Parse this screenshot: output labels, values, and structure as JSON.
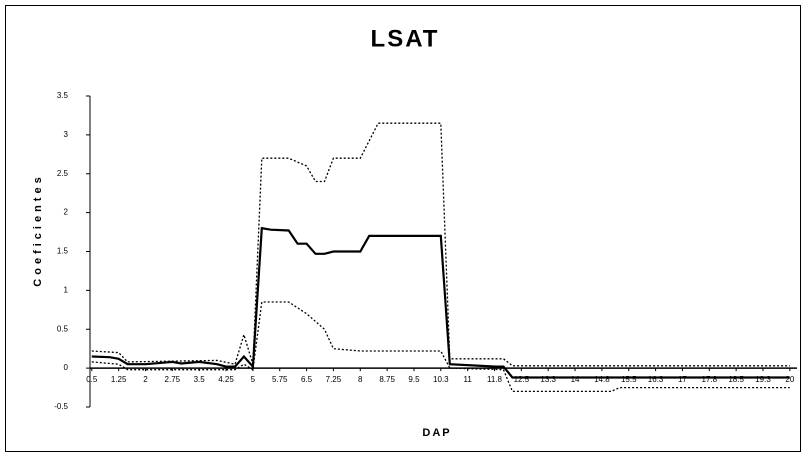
{
  "chart_data": {
    "type": "line",
    "title": "LSAT",
    "x_label": "DAP",
    "y_label": "Coeficientes",
    "xlim": [
      0.45,
      20.2
    ],
    "ylim": [
      -0.5,
      3.5
    ],
    "yticks": [
      -0.5,
      0,
      0.5,
      1,
      1.5,
      2,
      2.5,
      3,
      3.5
    ],
    "xticks": [
      0.5,
      1.25,
      2,
      2.75,
      3.5,
      4.25,
      5,
      5.75,
      6.5,
      7.25,
      8,
      8.75,
      9.5,
      {
        "value": 10.25,
        "label": "10.3"
      },
      11,
      {
        "value": 11.75,
        "label": "11.8"
      },
      12.5,
      {
        "value": 13.25,
        "label": "13.3"
      },
      14,
      {
        "value": 14.75,
        "label": "14.8"
      },
      15.5,
      {
        "value": 16.25,
        "label": "16.3"
      },
      17,
      {
        "value": 17.75,
        "label": "17.8"
      },
      18.5,
      {
        "value": 19.25,
        "label": "19.3"
      },
      20
    ],
    "grid": false,
    "series": [
      {
        "color": "#000000",
        "style": "solid",
        "x": [
          0.5,
          1,
          1.25,
          1.5,
          2,
          2.5,
          2.75,
          3,
          3.5,
          4,
          4.25,
          4.5,
          4.75,
          5,
          5.25,
          5.5,
          6,
          6.25,
          6.5,
          6.75,
          7,
          7.25,
          8,
          8.25,
          10.25,
          10.5,
          11.8,
          12,
          12.25,
          20
        ],
        "values": [
          0.15,
          0.14,
          0.12,
          0.05,
          0.05,
          0.07,
          0.08,
          0.06,
          0.08,
          0.05,
          0.02,
          0.02,
          0.15,
          0.02,
          1.8,
          1.78,
          1.77,
          1.6,
          1.6,
          1.47,
          1.47,
          1.5,
          1.5,
          1.7,
          1.7,
          0.05,
          0.02,
          0.02,
          -0.12,
          -0.12
        ]
      },
      {
        "color": "#000000",
        "style": "dotted",
        "x": [
          0.5,
          1.25,
          1.5,
          4,
          4.5,
          4.75,
          5,
          5.25,
          6,
          6.5,
          6.75,
          7,
          7.25,
          8,
          8.5,
          10.25,
          10.5,
          12,
          12.25,
          20
        ],
        "values": [
          0.22,
          0.2,
          0.08,
          0.1,
          0.05,
          0.43,
          0.05,
          2.7,
          2.7,
          2.6,
          2.4,
          2.4,
          2.7,
          2.7,
          3.15,
          3.15,
          0.12,
          0.12,
          0.03,
          0.03
        ]
      },
      {
        "color": "#000000",
        "style": "dotted",
        "x": [
          0.5,
          1.25,
          1.5,
          4.5,
          4.75,
          5,
          5.25,
          6,
          6.5,
          7,
          7.25,
          8,
          10.25,
          10.5,
          12,
          12.25,
          15,
          15.25,
          20
        ],
        "values": [
          0.08,
          0.05,
          -0.02,
          -0.02,
          0.05,
          -0.02,
          0.85,
          0.85,
          0.7,
          0.5,
          0.25,
          0.22,
          0.22,
          0,
          -0.02,
          -0.3,
          -0.3,
          -0.25,
          -0.25
        ]
      }
    ]
  }
}
